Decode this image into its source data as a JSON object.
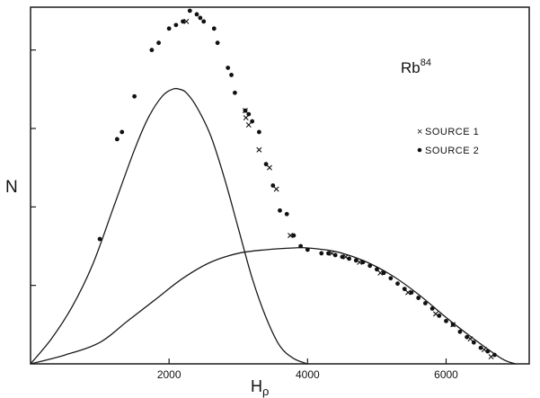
{
  "chart_data": {
    "type": "scatter",
    "xlabel_main": "H",
    "xlabel_sub": "ρ",
    "ylabel": "N",
    "isotope_main": "Rb",
    "isotope_sup": "84",
    "x_ticks": [
      2000,
      4000,
      6000
    ],
    "xlim": [
      0,
      7200
    ],
    "ylim": [
      0,
      100
    ],
    "y_ticks_unlabeled": [
      22,
      44,
      66,
      88
    ],
    "grid": false,
    "legend_position": "right",
    "legend": [
      {
        "marker": "×",
        "label": "SOURCE 1"
      },
      {
        "marker": "•",
        "label": "SOURCE 2"
      }
    ],
    "curves": [
      {
        "x": [
          0,
          300,
          600,
          900,
          1200,
          1500,
          1700,
          1900,
          2050,
          2150,
          2250,
          2400,
          2600,
          2800,
          3000,
          3200,
          3400,
          3600,
          3800,
          4000
        ],
        "y": [
          0,
          7,
          16,
          28,
          44,
          60,
          69,
          75,
          77,
          77,
          76,
          72,
          64,
          52,
          38,
          24,
          13,
          5,
          1.5,
          0
        ]
      },
      {
        "x": [
          0,
          500,
          1000,
          1400,
          1800,
          2200,
          2600,
          3000,
          3400,
          3800,
          4000,
          4400,
          4800,
          5200,
          5600,
          6000,
          6400,
          6800,
          7000
        ],
        "y": [
          0,
          2.5,
          6,
          12,
          18,
          24,
          28.5,
          31,
          32,
          32.5,
          32.5,
          31.5,
          29,
          25,
          19.5,
          13,
          7,
          1.5,
          0
        ]
      }
    ],
    "series": [
      {
        "name": "SOURCE 1",
        "marker": "x",
        "x": [
          2250,
          3100,
          3110,
          3150,
          3300,
          3450,
          3550,
          3750,
          4350,
          4550,
          4750,
          5050,
          5450,
          5850,
          6100,
          6350,
          6550,
          6650
        ],
        "y": [
          96,
          71,
          69,
          67,
          60,
          55,
          49,
          36,
          31,
          30,
          28.5,
          25.5,
          20,
          14,
          11,
          7,
          4,
          2
        ]
      },
      {
        "name": "SOURCE 2",
        "marker": "dot",
        "x": [
          1000,
          1250,
          1320,
          1500,
          1750,
          1850,
          2000,
          2100,
          2200,
          2300,
          2400,
          2450,
          2500,
          2650,
          2700,
          2850,
          2900,
          2950,
          3100,
          3150,
          3200,
          3300,
          3400,
          3500,
          3600,
          3700,
          3800,
          3900,
          4000,
          4200,
          4300,
          4400,
          4500,
          4600,
          4700,
          4800,
          4900,
          5000,
          5100,
          5200,
          5300,
          5400,
          5500,
          5600,
          5700,
          5800,
          5900,
          6000,
          6100,
          6200,
          6300,
          6400,
          6500,
          6600,
          6700
        ],
        "y": [
          35,
          63,
          65,
          75,
          88,
          90,
          94,
          95,
          96,
          99,
          98,
          97,
          96,
          94,
          90,
          83,
          81,
          76,
          71,
          70,
          68,
          65,
          56,
          50,
          43,
          42,
          36,
          33,
          32,
          31,
          31,
          30.5,
          30,
          29.5,
          29,
          28.5,
          27.5,
          26.5,
          25.5,
          24,
          22.5,
          21,
          20,
          18.5,
          17,
          15.5,
          13.5,
          12,
          11,
          9,
          7.5,
          6,
          4.5,
          3.5,
          2.5
        ]
      }
    ]
  }
}
